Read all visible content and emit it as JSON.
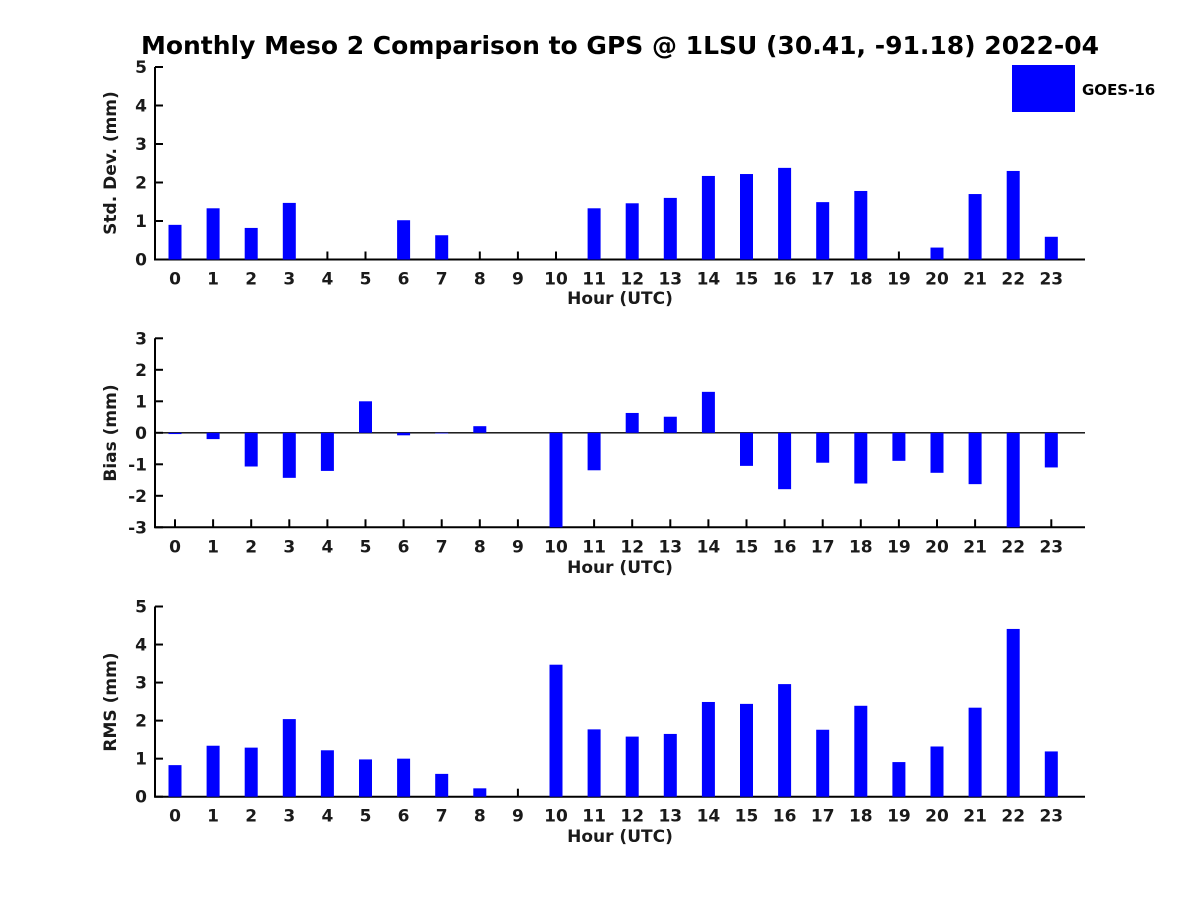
{
  "title": "Monthly Meso 2 Comparison to GPS @ 1LSU (30.41, -91.18) 2022-04",
  "legend": {
    "label": "GOES-16",
    "color": "#0000FF"
  },
  "colors": {
    "bar": "#0000FF",
    "axis": "#000000",
    "tick_label": "#1a1a1a"
  },
  "categories": [
    "0",
    "1",
    "2",
    "3",
    "4",
    "5",
    "6",
    "7",
    "8",
    "9",
    "10",
    "11",
    "12",
    "13",
    "14",
    "15",
    "16",
    "17",
    "18",
    "19",
    "20",
    "21",
    "22",
    "23"
  ],
  "chart_data": [
    {
      "type": "bar",
      "name": "std_dev",
      "ylabel": "Std. Dev. (mm)",
      "xlabel": "Hour (UTC)",
      "ylim": [
        0,
        5
      ],
      "yticks": [
        0,
        1,
        2,
        3,
        4,
        5
      ],
      "grid": false,
      "legend_position": "top-right",
      "categories": [
        "0",
        "1",
        "2",
        "3",
        "4",
        "5",
        "6",
        "7",
        "8",
        "9",
        "10",
        "11",
        "12",
        "13",
        "14",
        "15",
        "16",
        "17",
        "18",
        "19",
        "20",
        "21",
        "22",
        "23"
      ],
      "series": [
        {
          "name": "GOES-16",
          "values": [
            0.9,
            1.33,
            0.82,
            1.47,
            0,
            0,
            1.02,
            0.63,
            0,
            0,
            0,
            1.33,
            1.46,
            1.6,
            2.17,
            2.22,
            2.38,
            1.49,
            1.78,
            0,
            0.31,
            1.7,
            2.3,
            0.59
          ]
        }
      ]
    },
    {
      "type": "bar",
      "name": "bias",
      "ylabel": "Bias (mm)",
      "xlabel": "Hour (UTC)",
      "ylim": [
        -3,
        3
      ],
      "yticks": [
        -3,
        -2,
        -1,
        0,
        1,
        2,
        3
      ],
      "grid": false,
      "baseline": 0,
      "categories": [
        "0",
        "1",
        "2",
        "3",
        "4",
        "5",
        "6",
        "7",
        "8",
        "9",
        "10",
        "11",
        "12",
        "13",
        "14",
        "15",
        "16",
        "17",
        "18",
        "19",
        "20",
        "21",
        "22",
        "23"
      ],
      "series": [
        {
          "name": "GOES-16",
          "values": [
            -0.04,
            -0.2,
            -1.07,
            -1.43,
            -1.21,
            1.0,
            -0.08,
            -0.02,
            0.21,
            0,
            -3.0,
            -1.19,
            0.63,
            0.51,
            1.3,
            -1.05,
            -1.79,
            -0.95,
            -1.61,
            -0.89,
            -1.27,
            -1.63,
            -3.0,
            -1.1
          ]
        }
      ]
    },
    {
      "type": "bar",
      "name": "rms",
      "ylabel": "RMS (mm)",
      "xlabel": "Hour (UTC)",
      "ylim": [
        0,
        5
      ],
      "yticks": [
        0,
        1,
        2,
        3,
        4,
        5
      ],
      "grid": false,
      "categories": [
        "0",
        "1",
        "2",
        "3",
        "4",
        "5",
        "6",
        "7",
        "8",
        "9",
        "10",
        "11",
        "12",
        "13",
        "14",
        "15",
        "16",
        "17",
        "18",
        "19",
        "20",
        "21",
        "22",
        "23"
      ],
      "series": [
        {
          "name": "GOES-16",
          "values": [
            0.83,
            1.34,
            1.29,
            2.04,
            1.22,
            0.98,
            1.0,
            0.6,
            0.22,
            0,
            3.47,
            1.77,
            1.58,
            1.65,
            2.49,
            2.44,
            2.96,
            1.76,
            2.39,
            0.91,
            1.32,
            2.34,
            4.41,
            1.19
          ]
        }
      ]
    }
  ]
}
